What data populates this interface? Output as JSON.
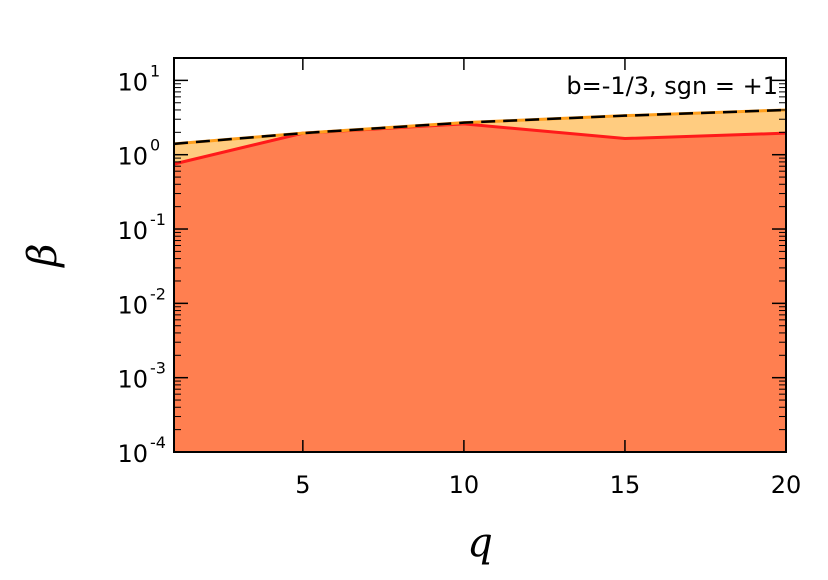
{
  "chart_data": {
    "type": "area",
    "xlabel": "q",
    "ylabel": "β",
    "xlim": [
      1,
      20
    ],
    "ylim": [
      0.0001,
      20
    ],
    "yscale": "log",
    "xticks": [
      5,
      10,
      15,
      20
    ],
    "yticks": [
      {
        "value": 0.0001,
        "base": "10",
        "exp": "-4"
      },
      {
        "value": 0.001,
        "base": "10",
        "exp": "-3"
      },
      {
        "value": 0.01,
        "base": "10",
        "exp": "-2"
      },
      {
        "value": 0.1,
        "base": "10",
        "exp": "-1"
      },
      {
        "value": 1,
        "base": "10",
        "exp": "0"
      },
      {
        "value": 10,
        "base": "10",
        "exp": "1"
      }
    ],
    "annotation": "b=-1/3, sgn = +1",
    "grid": false,
    "series": [
      {
        "role": "upper bound (dashed)",
        "x": [
          1,
          5,
          10,
          15,
          20
        ],
        "y": [
          1.4,
          1.95,
          2.7,
          3.35,
          4.0
        ],
        "line_color": "#000000",
        "dash_color": "#ff9f1c",
        "fill_color": "#ffcc80"
      },
      {
        "role": "lower curve (filled)",
        "x": [
          1,
          5,
          10,
          15,
          20
        ],
        "y": [
          0.75,
          1.95,
          2.6,
          1.65,
          1.95
        ],
        "line_color": "#ff1a1a",
        "fill_color": "#ff7f50"
      }
    ]
  }
}
